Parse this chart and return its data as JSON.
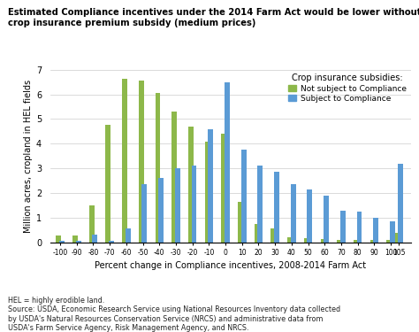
{
  "title_line1": "Estimated Compliance incentives under the 2014 Farm Act would be lower without link to",
  "title_line2": "crop insurance premium subsidy (medium prices)",
  "ylabel": "Million acres, cropland in HEL fields",
  "xlabel": "Percent change in Compliance incentives, 2008-2014 Farm Act",
  "legend_title": "Crop insurance subsidies:",
  "legend_label_green": "Not subject to Compliance",
  "legend_label_blue": "Subject to Compliance",
  "green_color": "#8db84a",
  "blue_color": "#5b9bd5",
  "ylim": [
    0,
    7
  ],
  "x_positions": [
    -100,
    -90,
    -80,
    -70,
    -60,
    -50,
    -40,
    -30,
    -20,
    -10,
    0,
    10,
    20,
    30,
    40,
    50,
    60,
    70,
    80,
    90,
    100,
    105
  ],
  "green_vals": [
    0.28,
    0.28,
    1.5,
    4.75,
    6.65,
    6.55,
    6.05,
    5.3,
    4.7,
    4.1,
    4.4,
    1.65,
    0.75,
    0.55,
    0.22,
    0.18,
    0.12,
    0.1,
    0.1,
    0.1,
    0.1,
    0.4
  ],
  "blue_vals": [
    0.08,
    0.08,
    0.3,
    0.08,
    0.55,
    2.35,
    2.6,
    3.0,
    3.1,
    4.6,
    6.5,
    3.75,
    3.1,
    2.85,
    2.35,
    2.15,
    1.9,
    1.3,
    1.25,
    1.0,
    0.85,
    3.2
  ],
  "footnote": "HEL = highly erodible land.\nSource: USDA, Economic Research Service using National Resources Inventory data collected\nby USDA's Natural Resources Conservation Service (NRCS) and administrative data from\nUSDA's Farm Service Agency, Risk Management Agency, and NRCS."
}
